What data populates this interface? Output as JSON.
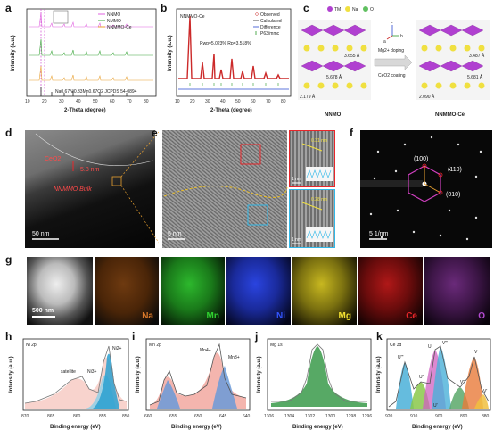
{
  "panels": {
    "a": {
      "label": "a",
      "legend": [
        "NNMO",
        "NMMO",
        "NNMMO-Ce"
      ],
      "ref": "Na0.67Ni0.33Mn0.67O2 JCPDS 54-0894",
      "xlabel": "2-Theta (degree)",
      "ylabel": "Intensity (a.u.)",
      "xticks": [
        "10",
        "20",
        "30",
        "40",
        "50",
        "60",
        "70",
        "80"
      ]
    },
    "b": {
      "label": "b",
      "title": "NNMMO-Ce",
      "legend": [
        "Observed",
        "Calculated",
        "Difference",
        "P63/mmc"
      ],
      "stats": "Rwp=5.023% Rp=3.518%",
      "xlabel": "2-Theta (degree)",
      "ylabel": "Intensity (a.u.)",
      "xticks": [
        "10",
        "20",
        "30",
        "40",
        "50",
        "60",
        "70",
        "80"
      ]
    },
    "c": {
      "label": "c",
      "legend": [
        "TM",
        "Na",
        "O"
      ],
      "axes": [
        "a",
        "b",
        "c"
      ],
      "arrow_top": "Mg2+ doping",
      "arrow_bottom": "CeO2 coating",
      "left_name": "NNMO",
      "right_name": "NNMMO-Ce",
      "dims_left": [
        "3.655 Å",
        "5.678 Å",
        "2.179 Å"
      ],
      "dims_right": [
        "3.487 Å",
        "5.681 Å",
        "2.090 Å"
      ]
    },
    "d": {
      "label": "d",
      "ceo2": "CeO2",
      "thickness": "5.8 nm",
      "bulk": "NNMMO Bulk",
      "scale": "50 nm"
    },
    "e": {
      "label": "e",
      "scale": "5 nm",
      "inset1_d": "0.31 nm",
      "inset1_scale": "1 nm",
      "inset2_d": "0.28 nm",
      "inset2_scale": "1 nm"
    },
    "f": {
      "label": "f",
      "spots": [
        "(100)",
        "(110)",
        "(010)"
      ],
      "scale": "5 1/nm"
    },
    "g": {
      "label": "g",
      "scale": "500 nm",
      "elements": [
        {
          "name": "Na",
          "color": "#d9782a"
        },
        {
          "name": "Mn",
          "color": "#2fd12f"
        },
        {
          "name": "Ni",
          "color": "#3355ff"
        },
        {
          "name": "Mg",
          "color": "#f2e030"
        },
        {
          "name": "Ce",
          "color": "#e8262a"
        },
        {
          "name": "O",
          "color": "#b24ad0"
        }
      ]
    },
    "h": {
      "label": "h",
      "title": "Ni 2p",
      "peaks": [
        "satellite",
        "Ni3+",
        "Ni2+"
      ],
      "xlabel": "Binding energy (eV)",
      "ylabel": "Intensity (a.u.)",
      "xticks": [
        "870",
        "865",
        "860",
        "855",
        "850"
      ]
    },
    "i": {
      "label": "i",
      "title": "Mn 2p",
      "peaks": [
        "Mn4+",
        "Mn3+"
      ],
      "xlabel": "Binding energy (eV)",
      "ylabel": "Intensity (a.u.)",
      "xticks": [
        "660",
        "655",
        "650",
        "645",
        "640"
      ]
    },
    "j": {
      "label": "j",
      "title": "Mg 1s",
      "xlabel": "Binding energy (eV)",
      "ylabel": "Intensity (a.u.)",
      "xticks": [
        "1306",
        "1304",
        "1302",
        "1300",
        "1298",
        "1296"
      ]
    },
    "k": {
      "label": "k",
      "title": "Ce 3d",
      "peaks": [
        "U'''",
        "V'''",
        "U''",
        "V''",
        "U",
        "V",
        "U'",
        "V'"
      ],
      "xlabel": "Binding energy (eV)",
      "ylabel": "Intensity (a.u.)",
      "xticks": [
        "920",
        "910",
        "900",
        "890",
        "880"
      ]
    }
  },
  "watermark": "科学材料站"
}
